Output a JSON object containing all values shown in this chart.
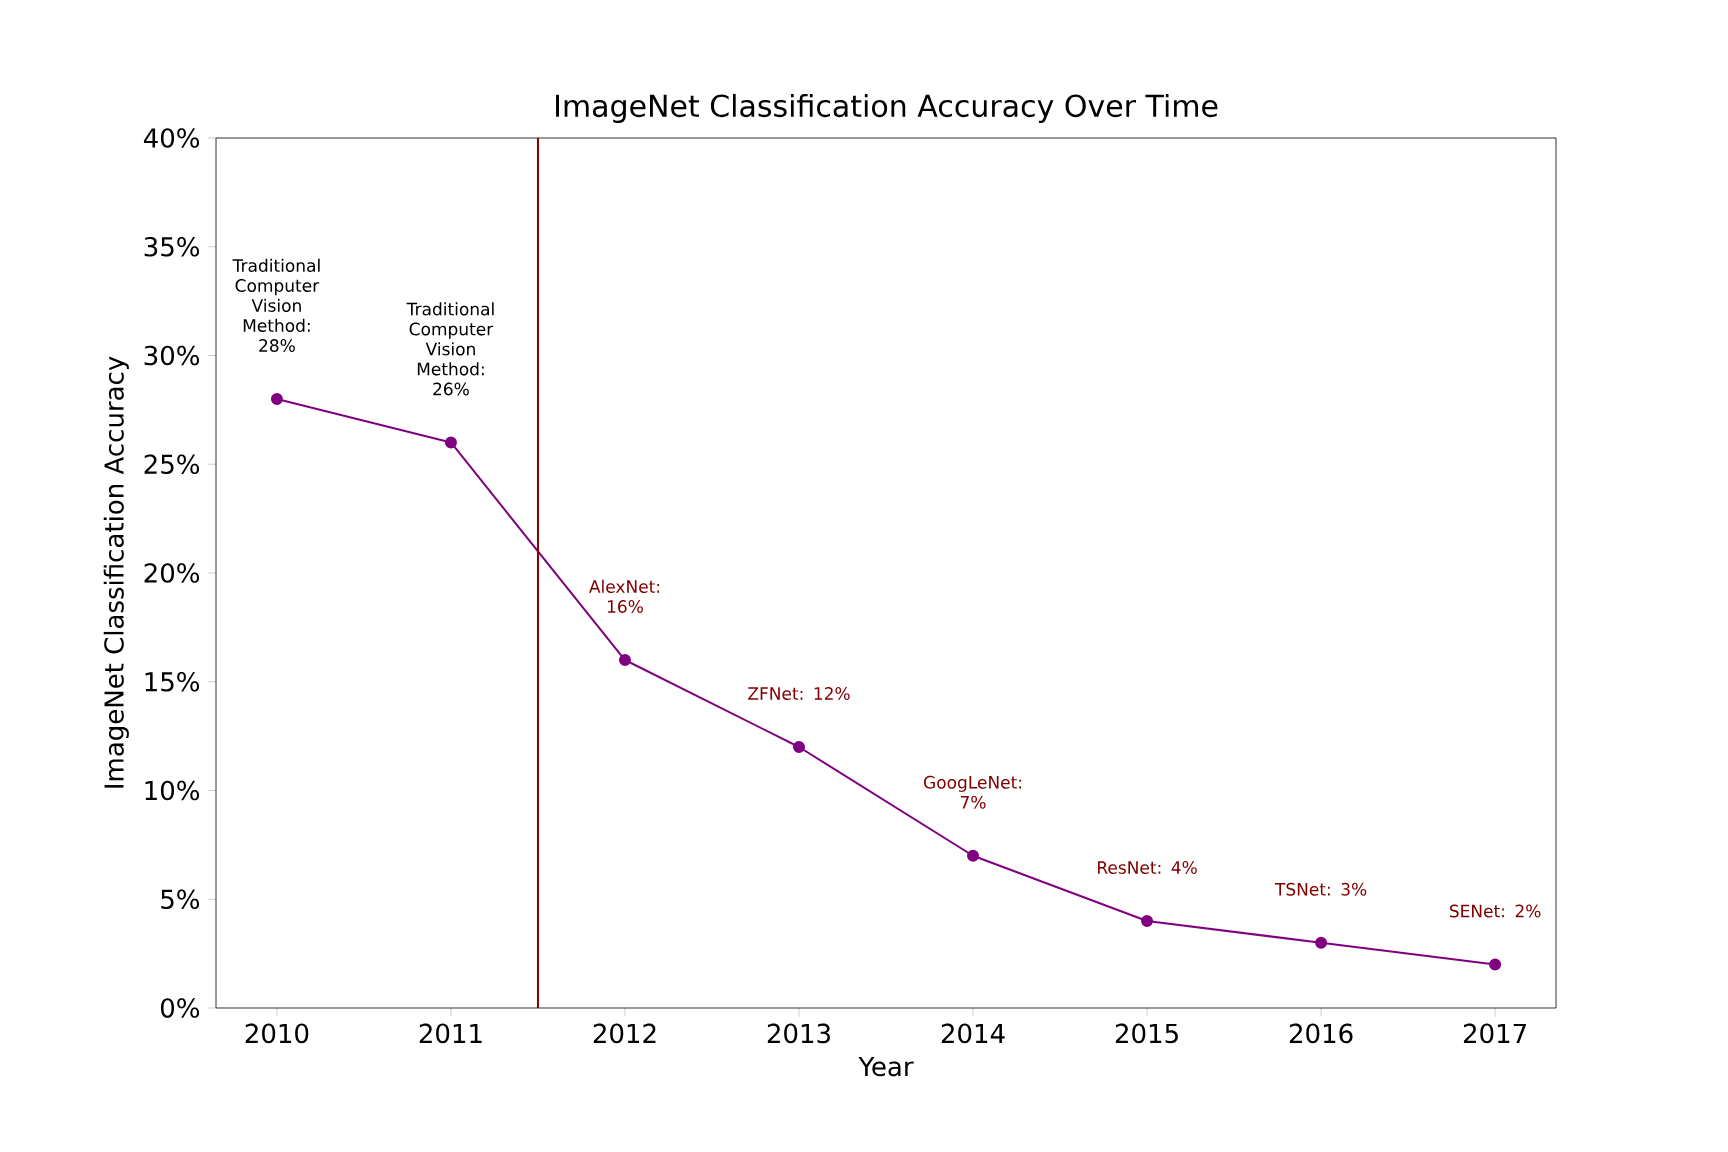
{
  "chart_data": {
    "type": "line",
    "title": "ImageNet Classification Accuracy Over Time",
    "xlabel": "Year",
    "ylabel": "ImageNet Classification Accuracy",
    "x": [
      2010,
      2011,
      2012,
      2013,
      2014,
      2015,
      2016,
      2017
    ],
    "series": [
      {
        "color": "#800080",
        "values": [
          28,
          26,
          16,
          12,
          7,
          4,
          3,
          2
        ]
      }
    ],
    "marker": "circle",
    "line_style": "solid",
    "grid": false,
    "xlim": [
      2009.65,
      2017.35
    ],
    "xticks": [
      2010,
      2011,
      2012,
      2013,
      2014,
      2015,
      2016,
      2017
    ],
    "ylim": [
      0,
      40
    ],
    "yticks": [
      {
        "value": 0,
        "label": "0%"
      },
      {
        "value": 5,
        "label": "5%"
      },
      {
        "value": 10,
        "label": "10%"
      },
      {
        "value": 15,
        "label": "15%"
      },
      {
        "value": 20,
        "label": "20%"
      },
      {
        "value": 25,
        "label": "25%"
      },
      {
        "value": 30,
        "label": "30%"
      },
      {
        "value": 35,
        "label": "35%"
      },
      {
        "value": 40,
        "label": "40%"
      }
    ],
    "ref_lines": [
      {
        "axis": "x",
        "value": 2011.5,
        "color": "#800000"
      }
    ],
    "annotations": [
      {
        "text": "Traditional Computer Vision Method: 28%",
        "x": 2010,
        "y": 28
      },
      {
        "text": "Traditional Computer Vision Method: 26%",
        "x": 2011,
        "y": 26
      },
      {
        "text": "AlexNet: 16%",
        "x": 2012,
        "y": 16
      },
      {
        "text": "ZFNet: 12%",
        "x": 2013,
        "y": 12
      },
      {
        "text": "GoogLeNet: 7%",
        "x": 2014,
        "y": 7
      },
      {
        "text": "ResNet: 4%",
        "x": 2015,
        "y": 4
      },
      {
        "text": "TSNet: 3%",
        "x": 2016,
        "y": 3
      },
      {
        "text": "SENet: 2%",
        "x": 2017,
        "y": 2
      }
    ]
  }
}
